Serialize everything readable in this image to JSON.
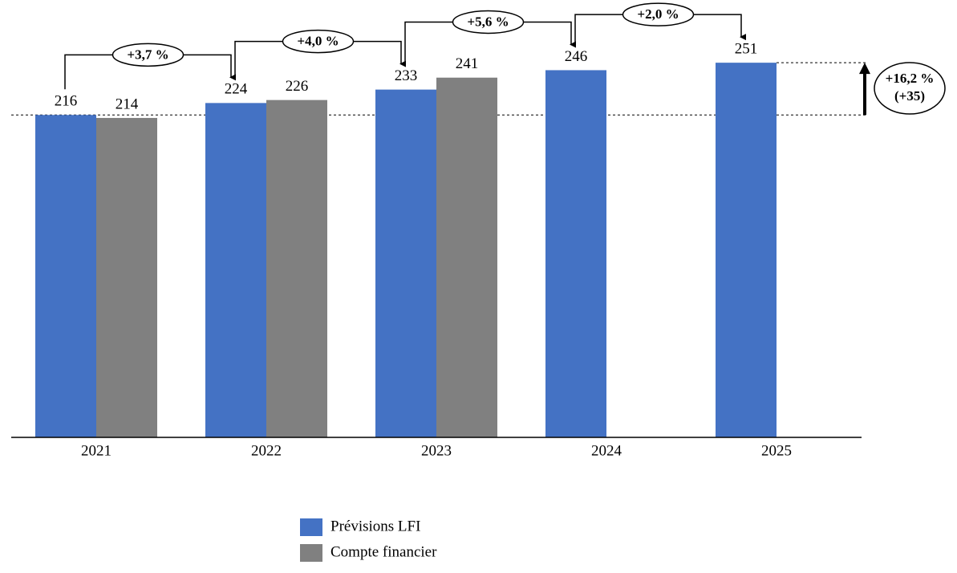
{
  "chart_data": {
    "type": "bar",
    "categories": [
      "2021",
      "2022",
      "2023",
      "2024",
      "2025"
    ],
    "series": [
      {
        "name": "Prévisions LFI",
        "color": "#4472c4",
        "values": [
          216,
          224,
          233,
          246,
          251
        ]
      },
      {
        "name": "Compte financier",
        "color": "#808080",
        "values": [
          214,
          226,
          241,
          null,
          null
        ]
      }
    ],
    "ylim": [
      0,
      250
    ],
    "annotations": [
      "+3,7 %",
      "+4,0 %",
      "+5,6 %",
      "+2,0 %"
    ],
    "total_change": [
      "+16,2 %",
      "(+35)"
    ]
  }
}
